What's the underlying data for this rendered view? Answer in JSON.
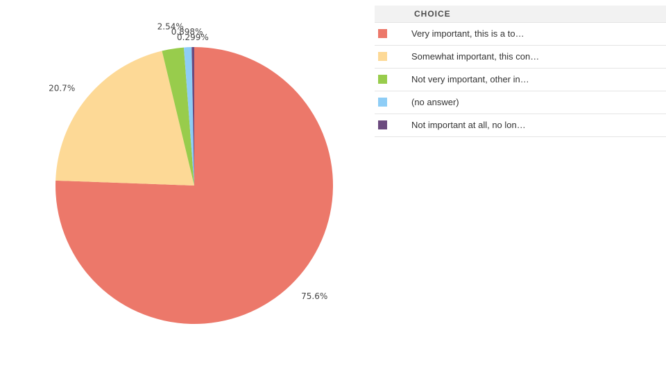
{
  "chart_data": {
    "type": "pie",
    "slices": [
      {
        "label": "Very important, this is a to…",
        "value": 75.6,
        "value_label": "75.6%",
        "color": "#ec786a"
      },
      {
        "label": "Somewhat important, this con…",
        "value": 20.7,
        "value_label": "20.7%",
        "color": "#fdd996"
      },
      {
        "label": "Not very important, other in…",
        "value": 2.54,
        "value_label": "2.54%",
        "color": "#98cc4c"
      },
      {
        "label": "(no answer)",
        "value": 0.898,
        "value_label": "0.898%",
        "color": "#8ecdf6"
      },
      {
        "label": "Not important at all, no lon…",
        "value": 0.299,
        "value_label": "0.299%",
        "color": "#6b4a7e"
      }
    ],
    "legend_title": "CHOICE",
    "legend_placement": "right"
  }
}
